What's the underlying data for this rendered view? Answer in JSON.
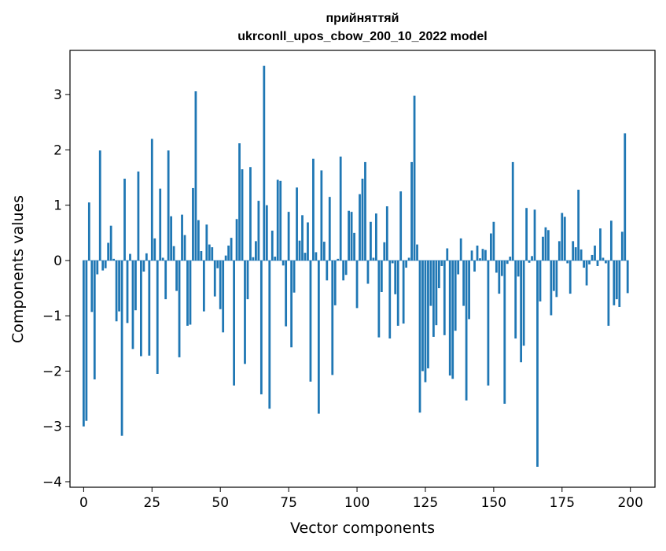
{
  "chart_data": {
    "type": "bar",
    "title": "прийняттяй",
    "subtitle": "ukrconll_upos_cbow_200_10_2022 model",
    "xlabel": "Vector components",
    "ylabel": "Components values",
    "xlim": [
      -5,
      209
    ],
    "ylim": [
      -4.1,
      3.8
    ],
    "xticks": [
      0,
      25,
      50,
      75,
      100,
      125,
      150,
      175,
      200
    ],
    "yticks": [
      -4,
      -3,
      -2,
      -1,
      0,
      1,
      2,
      3
    ],
    "xtick_labels": [
      "0",
      "25",
      "50",
      "75",
      "100",
      "125",
      "150",
      "175",
      "200"
    ],
    "ytick_labels": [
      "−4",
      "−3",
      "−2",
      "−1",
      "0",
      "1",
      "2",
      "3"
    ],
    "bar_color": "#1f77b4",
    "grid": false,
    "legend": "none",
    "values": [
      -3.0,
      -2.9,
      1.05,
      -0.93,
      -2.15,
      -0.25,
      1.99,
      -0.18,
      -0.14,
      0.32,
      0.63,
      0.03,
      -1.1,
      -0.92,
      -3.17,
      1.48,
      -1.13,
      0.12,
      -1.6,
      -0.9,
      1.61,
      -1.73,
      -0.2,
      0.13,
      -1.72,
      2.2,
      0.4,
      -2.05,
      1.3,
      0.05,
      -0.7,
      1.99,
      0.8,
      0.26,
      -0.55,
      -1.75,
      0.83,
      0.46,
      -1.18,
      -1.16,
      1.31,
      3.06,
      0.73,
      0.17,
      -0.92,
      0.65,
      0.29,
      0.24,
      -0.65,
      -0.14,
      -0.88,
      -1.3,
      0.09,
      0.27,
      0.41,
      -2.26,
      0.75,
      2.12,
      1.65,
      -1.87,
      -0.7,
      1.69,
      0.06,
      0.35,
      1.08,
      -2.42,
      3.52,
      1.0,
      -2.68,
      0.54,
      0.07,
      1.46,
      1.44,
      -0.09,
      -1.19,
      0.88,
      -1.57,
      -0.58,
      1.32,
      0.36,
      0.82,
      0.14,
      0.69,
      -2.19,
      1.84,
      0.15,
      -2.77,
      1.63,
      0.34,
      -0.36,
      1.15,
      -2.07,
      -0.81,
      0.03,
      1.88,
      -0.36,
      -0.26,
      0.9,
      0.88,
      0.5,
      -0.86,
      1.2,
      1.48,
      1.78,
      -0.42,
      0.7,
      0.05,
      0.85,
      -1.39,
      -0.57,
      0.33,
      0.98,
      -1.41,
      -0.05,
      -0.61,
      -1.18,
      1.25,
      -1.14,
      -0.13,
      0.05,
      1.78,
      2.98,
      0.29,
      -2.75,
      -2.0,
      -2.2,
      -1.95,
      -0.82,
      -1.38,
      -1.17,
      -0.5,
      -0.1,
      -1.35,
      0.22,
      -2.08,
      -2.14,
      -1.27,
      -0.25,
      0.4,
      -0.82,
      -2.53,
      -1.06,
      0.18,
      -0.2,
      0.27,
      0.04,
      0.21,
      0.19,
      -2.26,
      0.49,
      0.7,
      -0.22,
      -0.6,
      -0.28,
      -2.59,
      -0.06,
      0.07,
      1.78,
      -1.41,
      -0.29,
      -1.84,
      -1.54,
      0.95,
      -0.04,
      0.08,
      0.92,
      -3.73,
      -0.74,
      0.43,
      0.6,
      0.55,
      -0.99,
      -0.55,
      -0.66,
      0.35,
      0.86,
      0.79,
      -0.05,
      -0.6,
      0.35,
      0.24,
      1.28,
      0.2,
      -0.13,
      -0.45,
      -0.07,
      0.1,
      0.27,
      -0.1,
      0.58,
      0.05,
      -0.05,
      -1.18,
      0.72,
      -0.81,
      -0.7,
      -0.84,
      0.52,
      2.3,
      -0.59
    ]
  }
}
